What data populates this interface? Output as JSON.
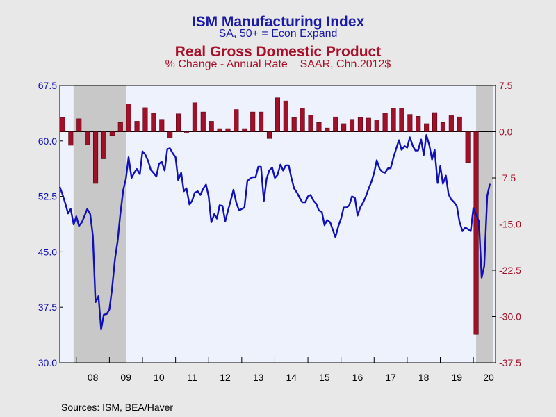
{
  "titles": {
    "primary": "ISM Manufacturing Index",
    "primary_sub": "SA, 50+ = Econ Expand",
    "secondary": "Real Gross Domestic Product",
    "secondary_sub": "% Change - Annual Rate    SAAR, Chn.2012$"
  },
  "source": "Sources:  ISM, BEA/Haver",
  "colors": {
    "ism": "#1010b8",
    "gdp": "#a01028",
    "left_axis": "#1010b8",
    "right_axis": "#a01028",
    "plot_bg": "#eef2fc",
    "recession": "#c8c8c8"
  },
  "chart_data": {
    "type": "bar+line",
    "left_axis": {
      "ticks": [
        "67.5",
        "60.0",
        "52.5",
        "45.0",
        "37.5",
        "30.0"
      ],
      "ylim": [
        30,
        67.5
      ]
    },
    "right_axis": {
      "ticks": [
        "7.5",
        "0.0",
        "-7.5",
        "-15.0",
        "-22.5",
        "-30.0",
        "-37.5"
      ],
      "ylim": [
        -37.5,
        7.5
      ]
    },
    "x_ticks": [
      "08",
      "09",
      "10",
      "11",
      "12",
      "13",
      "14",
      "15",
      "16",
      "17",
      "18",
      "19",
      "20"
    ],
    "x_range": [
      2007.5,
      2020.67
    ],
    "recessions": [
      [
        2007.917,
        2009.5
      ],
      [
        2020.083,
        2020.6
      ]
    ],
    "series": [
      {
        "name": "ISM Manufacturing Index",
        "kind": "line",
        "axis": "left",
        "points": [
          [
            2007.5,
            53.8
          ],
          [
            2007.58,
            52.8
          ],
          [
            2007.67,
            51.5
          ],
          [
            2007.75,
            50.2
          ],
          [
            2007.83,
            50.8
          ],
          [
            2007.92,
            48.7
          ],
          [
            2008.0,
            49.8
          ],
          [
            2008.08,
            48.5
          ],
          [
            2008.17,
            49.0
          ],
          [
            2008.25,
            49.9
          ],
          [
            2008.33,
            50.8
          ],
          [
            2008.42,
            50.1
          ],
          [
            2008.5,
            47.2
          ],
          [
            2008.58,
            38.2
          ],
          [
            2008.67,
            39.0
          ],
          [
            2008.75,
            34.5
          ],
          [
            2008.83,
            36.5
          ],
          [
            2008.92,
            36.6
          ],
          [
            2009.0,
            37.2
          ],
          [
            2009.08,
            40.0
          ],
          [
            2009.17,
            44.1
          ],
          [
            2009.25,
            46.5
          ],
          [
            2009.33,
            50.1
          ],
          [
            2009.42,
            53.4
          ],
          [
            2009.5,
            54.9
          ],
          [
            2009.58,
            57.8
          ],
          [
            2009.67,
            55.0
          ],
          [
            2009.75,
            55.7
          ],
          [
            2009.83,
            56.2
          ],
          [
            2009.92,
            55.5
          ],
          [
            2010.0,
            58.6
          ],
          [
            2010.08,
            58.2
          ],
          [
            2010.17,
            57.3
          ],
          [
            2010.25,
            56.1
          ],
          [
            2010.33,
            55.7
          ],
          [
            2010.42,
            55.2
          ],
          [
            2010.5,
            56.9
          ],
          [
            2010.58,
            57.2
          ],
          [
            2010.67,
            56.0
          ],
          [
            2010.75,
            58.9
          ],
          [
            2010.83,
            59.0
          ],
          [
            2010.92,
            58.3
          ],
          [
            2011.0,
            57.8
          ],
          [
            2011.08,
            54.7
          ],
          [
            2011.17,
            55.7
          ],
          [
            2011.25,
            53.2
          ],
          [
            2011.33,
            53.6
          ],
          [
            2011.42,
            51.4
          ],
          [
            2011.5,
            51.9
          ],
          [
            2011.58,
            53.0
          ],
          [
            2011.67,
            53.2
          ],
          [
            2011.75,
            52.7
          ],
          [
            2011.83,
            53.5
          ],
          [
            2011.92,
            54.1
          ],
          [
            2012.0,
            52.5
          ],
          [
            2012.08,
            49.0
          ],
          [
            2012.17,
            50.1
          ],
          [
            2012.25,
            49.5
          ],
          [
            2012.33,
            51.3
          ],
          [
            2012.42,
            51.2
          ],
          [
            2012.5,
            49.1
          ],
          [
            2012.58,
            50.5
          ],
          [
            2012.67,
            52.0
          ],
          [
            2012.75,
            53.4
          ],
          [
            2012.83,
            51.7
          ],
          [
            2012.92,
            50.6
          ],
          [
            2013.0,
            50.8
          ],
          [
            2013.08,
            51.0
          ],
          [
            2013.17,
            54.6
          ],
          [
            2013.25,
            54.9
          ],
          [
            2013.33,
            55.1
          ],
          [
            2013.42,
            55.1
          ],
          [
            2013.5,
            56.5
          ],
          [
            2013.58,
            56.5
          ],
          [
            2013.67,
            51.9
          ],
          [
            2013.75,
            54.9
          ],
          [
            2013.83,
            56.0
          ],
          [
            2013.92,
            56.4
          ],
          [
            2014.0,
            55.0
          ],
          [
            2014.08,
            55.4
          ],
          [
            2014.17,
            56.8
          ],
          [
            2014.25,
            56.0
          ],
          [
            2014.33,
            56.7
          ],
          [
            2014.42,
            56.7
          ],
          [
            2014.5,
            55.0
          ],
          [
            2014.58,
            53.6
          ],
          [
            2014.67,
            53.0
          ],
          [
            2014.75,
            52.3
          ],
          [
            2014.83,
            51.7
          ],
          [
            2014.92,
            51.7
          ],
          [
            2015.0,
            52.5
          ],
          [
            2015.08,
            52.7
          ],
          [
            2015.17,
            51.9
          ],
          [
            2015.25,
            51.5
          ],
          [
            2015.33,
            50.6
          ],
          [
            2015.42,
            50.4
          ],
          [
            2015.5,
            48.6
          ],
          [
            2015.58,
            49.3
          ],
          [
            2015.67,
            49.0
          ],
          [
            2015.75,
            48.0
          ],
          [
            2015.83,
            47.0
          ],
          [
            2015.92,
            48.5
          ],
          [
            2016.0,
            49.5
          ],
          [
            2016.08,
            51.0
          ],
          [
            2016.17,
            51.0
          ],
          [
            2016.25,
            51.3
          ],
          [
            2016.33,
            52.5
          ],
          [
            2016.42,
            52.3
          ],
          [
            2016.5,
            49.9
          ],
          [
            2016.58,
            51.0
          ],
          [
            2016.67,
            51.7
          ],
          [
            2016.75,
            52.5
          ],
          [
            2016.83,
            53.5
          ],
          [
            2016.92,
            54.5
          ],
          [
            2017.0,
            55.7
          ],
          [
            2017.08,
            57.4
          ],
          [
            2017.17,
            56.2
          ],
          [
            2017.25,
            55.8
          ],
          [
            2017.33,
            55.7
          ],
          [
            2017.42,
            56.3
          ],
          [
            2017.5,
            56.3
          ],
          [
            2017.58,
            57.7
          ],
          [
            2017.67,
            59.0
          ],
          [
            2017.75,
            60.1
          ],
          [
            2017.83,
            58.8
          ],
          [
            2017.92,
            59.3
          ],
          [
            2018.0,
            59.1
          ],
          [
            2018.08,
            60.5
          ],
          [
            2018.17,
            59.3
          ],
          [
            2018.25,
            58.7
          ],
          [
            2018.33,
            58.7
          ],
          [
            2018.42,
            60.2
          ],
          [
            2018.5,
            58.1
          ],
          [
            2018.58,
            60.8
          ],
          [
            2018.67,
            59.4
          ],
          [
            2018.75,
            57.5
          ],
          [
            2018.83,
            58.8
          ],
          [
            2018.92,
            54.3
          ],
          [
            2019.0,
            56.6
          ],
          [
            2019.08,
            54.2
          ],
          [
            2019.17,
            55.3
          ],
          [
            2019.25,
            52.8
          ],
          [
            2019.33,
            52.1
          ],
          [
            2019.42,
            51.7
          ],
          [
            2019.5,
            51.2
          ],
          [
            2019.58,
            49.1
          ],
          [
            2019.67,
            47.8
          ],
          [
            2019.75,
            48.3
          ],
          [
            2019.83,
            48.1
          ],
          [
            2019.92,
            47.8
          ],
          [
            2020.0,
            50.9
          ],
          [
            2020.08,
            50.1
          ],
          [
            2020.17,
            49.1
          ],
          [
            2020.25,
            41.5
          ],
          [
            2020.33,
            43.1
          ],
          [
            2020.42,
            52.6
          ],
          [
            2020.5,
            54.2
          ]
        ]
      },
      {
        "name": "Real Gross Domestic Product",
        "kind": "bar",
        "axis": "right",
        "points": [
          [
            2007.583,
            2.3
          ],
          [
            2007.833,
            -2.2
          ],
          [
            2008.083,
            2.1
          ],
          [
            2008.333,
            -2.1
          ],
          [
            2008.583,
            -8.4
          ],
          [
            2008.833,
            -4.4
          ],
          [
            2009.083,
            -0.6
          ],
          [
            2009.333,
            1.5
          ],
          [
            2009.583,
            4.5
          ],
          [
            2009.833,
            1.7
          ],
          [
            2010.083,
            3.9
          ],
          [
            2010.333,
            3.0
          ],
          [
            2010.583,
            2.0
          ],
          [
            2010.833,
            -1.0
          ],
          [
            2011.083,
            2.9
          ],
          [
            2011.333,
            -0.1
          ],
          [
            2011.583,
            4.7
          ],
          [
            2011.833,
            3.2
          ],
          [
            2012.083,
            1.7
          ],
          [
            2012.333,
            0.5
          ],
          [
            2012.583,
            0.5
          ],
          [
            2012.833,
            3.6
          ],
          [
            2013.083,
            0.5
          ],
          [
            2013.333,
            3.2
          ],
          [
            2013.583,
            3.2
          ],
          [
            2013.833,
            -1.1
          ],
          [
            2014.083,
            5.5
          ],
          [
            2014.333,
            5.0
          ],
          [
            2014.583,
            2.3
          ],
          [
            2014.833,
            3.8
          ],
          [
            2015.083,
            2.7
          ],
          [
            2015.333,
            1.5
          ],
          [
            2015.583,
            0.6
          ],
          [
            2015.833,
            2.4
          ],
          [
            2016.083,
            1.3
          ],
          [
            2016.333,
            2.0
          ],
          [
            2016.583,
            2.3
          ],
          [
            2016.833,
            2.2
          ],
          [
            2017.083,
            1.9
          ],
          [
            2017.333,
            3.0
          ],
          [
            2017.583,
            3.8
          ],
          [
            2017.833,
            3.8
          ],
          [
            2018.083,
            2.8
          ],
          [
            2018.333,
            2.5
          ],
          [
            2018.583,
            1.3
          ],
          [
            2018.833,
            3.1
          ],
          [
            2019.083,
            1.5
          ],
          [
            2019.333,
            2.6
          ],
          [
            2019.583,
            2.4
          ],
          [
            2019.833,
            -5.0
          ],
          [
            2020.083,
            -32.9
          ]
        ]
      }
    ]
  }
}
